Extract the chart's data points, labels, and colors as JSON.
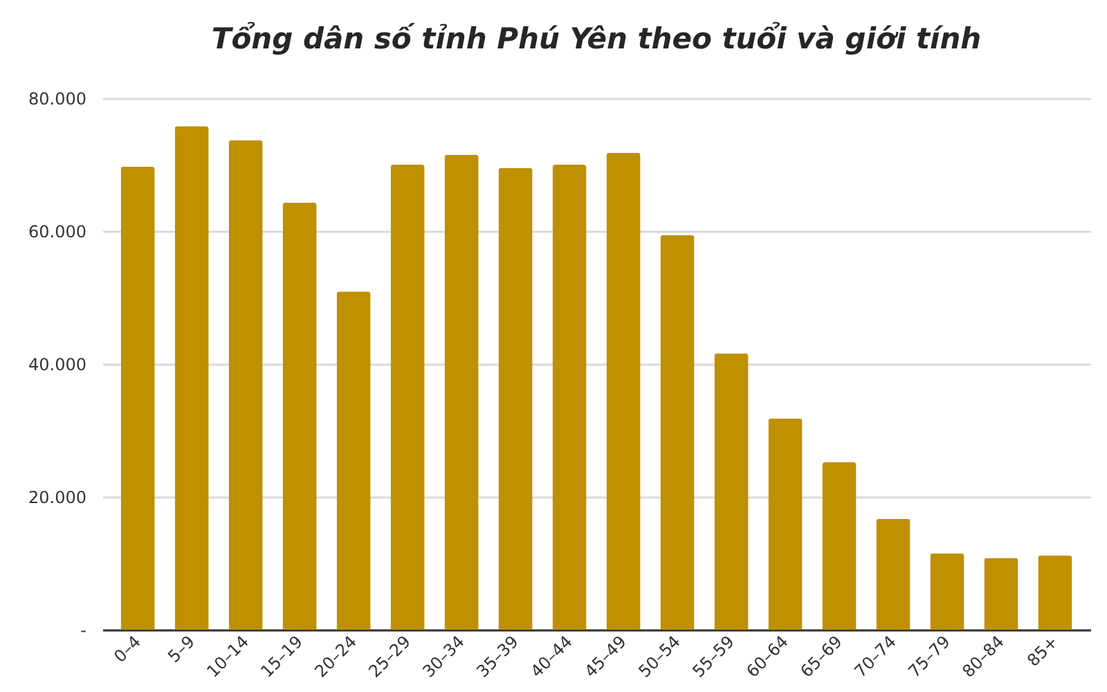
{
  "chart_data": {
    "type": "bar",
    "title": "Tổng dân số tỉnh Phú Yên theo tuổi và giới tính",
    "categories": [
      "0–4",
      "5–9",
      "10–14",
      "15–19",
      "20–24",
      "25–29",
      "30–34",
      "35–39",
      "40–44",
      "45–49",
      "50–54",
      "55–59",
      "60–64",
      "65–69",
      "70–74",
      "75–79",
      "80–84",
      "85+"
    ],
    "values": [
      69700,
      75800,
      73700,
      64300,
      50900,
      70000,
      71500,
      69500,
      70000,
      71800,
      59400,
      41600,
      31800,
      25200,
      16700,
      11500,
      10800,
      11200
    ],
    "color": "#bf9000",
    "ylim": [
      0,
      80000
    ],
    "yticks": [
      {
        "value": 0,
        "label": "-"
      },
      {
        "value": 20000,
        "label": "20.000"
      },
      {
        "value": 40000,
        "label": "40.000"
      },
      {
        "value": 60000,
        "label": "60.000"
      },
      {
        "value": 80000,
        "label": "80.000"
      }
    ],
    "grid": "y"
  }
}
